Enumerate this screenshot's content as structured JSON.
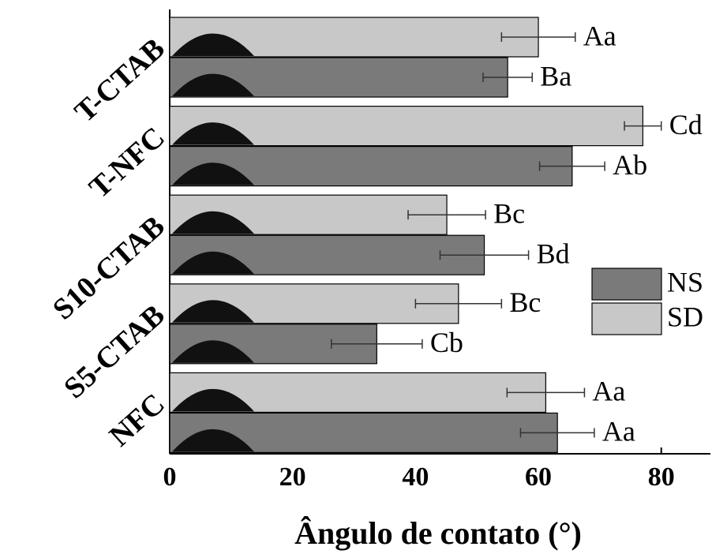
{
  "chart_data": {
    "type": "bar",
    "orientation": "horizontal",
    "x_label": "Ângulo de contato (°)",
    "categories": [
      "NFC",
      "S5-CTAB",
      "S10-CTAB",
      "T-NFC",
      "T-CTAB"
    ],
    "series": [
      {
        "name": "NS",
        "color": "#7a7a7a",
        "values": [
          63.1,
          33.7,
          51.2,
          65.5,
          55
        ],
        "errors": [
          6,
          7.4,
          7.2,
          5.3,
          4
        ],
        "labels": [
          "Aa",
          "Cb",
          "Bd",
          "Ab",
          "Ba"
        ]
      },
      {
        "name": "SD",
        "color": "#c8c8c8",
        "values": [
          61.2,
          47,
          45.1,
          77,
          60
        ],
        "errors": [
          6.3,
          7,
          6.3,
          3,
          6
        ],
        "labels": [
          "Aa",
          "Bc",
          "Bc",
          "Cd",
          "Aa"
        ]
      }
    ],
    "xlim": [
      0,
      88
    ],
    "xticks": [
      0,
      20,
      40,
      60,
      80
    ],
    "legend": "right"
  }
}
